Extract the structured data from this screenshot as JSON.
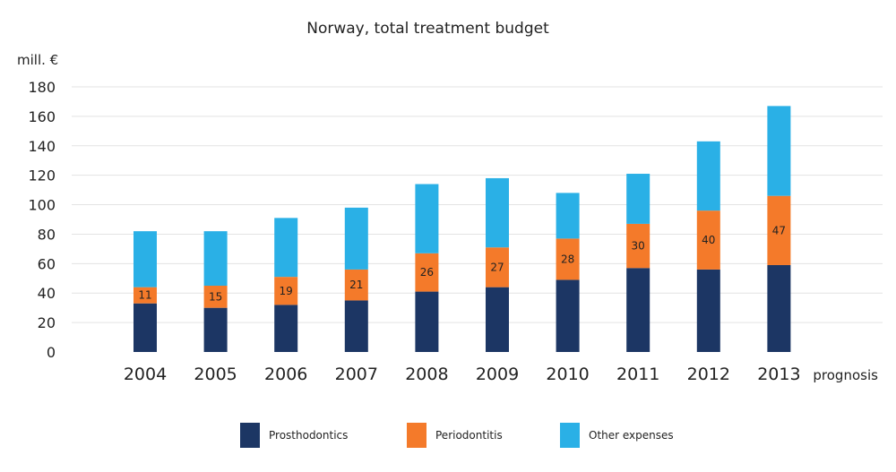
{
  "chart_data": {
    "type": "bar",
    "stacked": true,
    "title": "Norway, total treatment budget",
    "ylabel": "mill. €",
    "x_note": "prognosis",
    "categories": [
      "2004",
      "2005",
      "2006",
      "2007",
      "2008",
      "2009",
      "2010",
      "2011",
      "2012",
      "2013"
    ],
    "ylim": [
      0,
      180
    ],
    "yticks": [
      0,
      20,
      40,
      60,
      80,
      100,
      120,
      140,
      160,
      180
    ],
    "grid": true,
    "legend_position": "bottom",
    "series": [
      {
        "name": "Prosthodontics",
        "color": "#1c3664",
        "values": [
          33,
          30,
          32,
          35,
          41,
          44,
          49,
          57,
          56,
          59
        ]
      },
      {
        "name": "Periodontitis",
        "color": "#f47a2a",
        "values": [
          11,
          15,
          19,
          21,
          26,
          27,
          28,
          30,
          40,
          47
        ],
        "labels": [
          "11",
          "15",
          "19",
          "21",
          "26",
          "27",
          "28",
          "30",
          "40",
          "47"
        ]
      },
      {
        "name": "Other expenses",
        "color": "#2ab0e6",
        "values": [
          38,
          37,
          40,
          42,
          47,
          47,
          31,
          34,
          47,
          61
        ]
      }
    ]
  }
}
